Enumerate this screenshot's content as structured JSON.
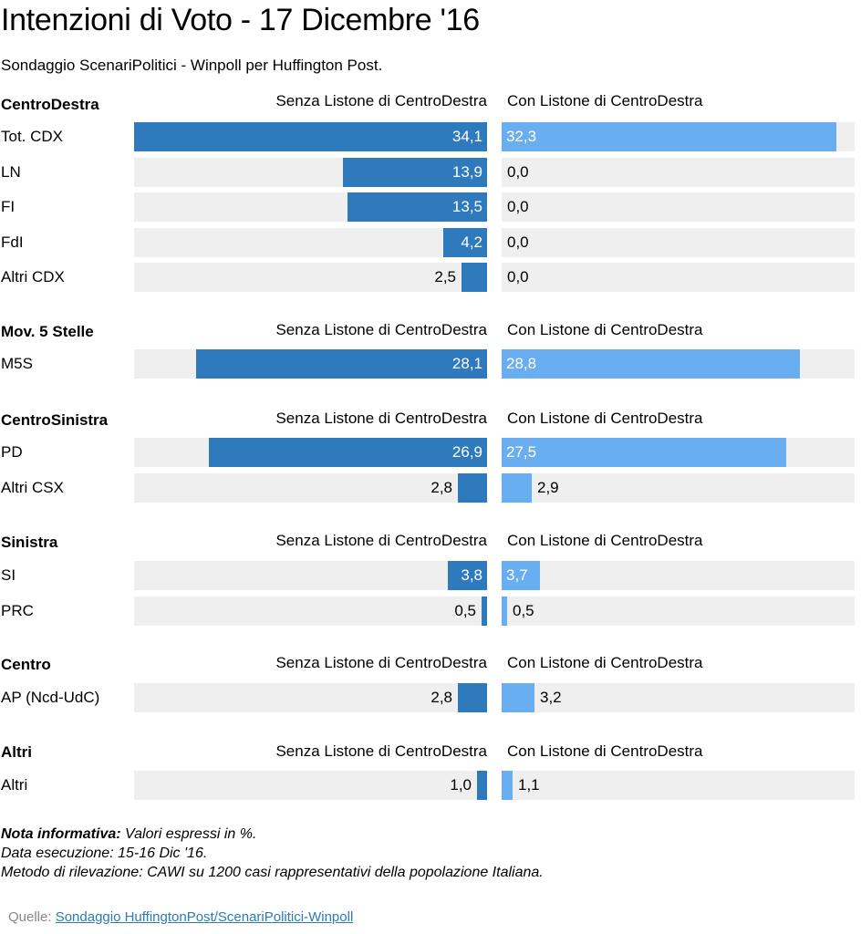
{
  "title": "Intenzioni di Voto - 17 Dicembre '16",
  "subtitle": "Sondaggio ScenariPolitici - Winpoll per Huffington Post.",
  "notes": {
    "label": "Nota informativa:",
    "line1": "Valori espressi in %.",
    "line2": "Data esecuzione: 15-16 Dic '16.",
    "line3": "Metodo di rilevazione: CAWI su 1200 casi rappresentativi della popolazione Italiana."
  },
  "source": {
    "prefix": "Quelle:",
    "link_text": "Sondaggio HuffingtonPost/ScenariPolitici-Winpoll"
  },
  "colors": {
    "left_bar": "#2e7abd",
    "right_bar": "#6aaef2",
    "track": "#efefef"
  },
  "chart_data": {
    "type": "bar",
    "orientation": "horizontal",
    "series": [
      {
        "name": "Senza Listone di CentroDestra"
      },
      {
        "name": "Con Listone di CentroDestra"
      }
    ],
    "xlim": [
      0,
      34.1
    ],
    "groups": [
      {
        "name": "CentroDestra",
        "rows": [
          {
            "label": "Tot. CDX",
            "left": 34.1,
            "left_text": "34,1",
            "right": 32.3,
            "right_text": "32,3"
          },
          {
            "label": "LN",
            "left": 13.9,
            "left_text": "13,9",
            "right": 0.0,
            "right_text": "0,0"
          },
          {
            "label": "FI",
            "left": 13.5,
            "left_text": "13,5",
            "right": 0.0,
            "right_text": "0,0"
          },
          {
            "label": "FdI",
            "left": 4.2,
            "left_text": "4,2",
            "right": 0.0,
            "right_text": "0,0"
          },
          {
            "label": "Altri CDX",
            "left": 2.5,
            "left_text": "2,5",
            "right": 0.0,
            "right_text": "0,0"
          }
        ]
      },
      {
        "name": "Mov. 5 Stelle",
        "rows": [
          {
            "label": "M5S",
            "left": 28.1,
            "left_text": "28,1",
            "right": 28.8,
            "right_text": "28,8"
          }
        ]
      },
      {
        "name": "CentroSinistra",
        "rows": [
          {
            "label": "PD",
            "left": 26.9,
            "left_text": "26,9",
            "right": 27.5,
            "right_text": "27,5"
          },
          {
            "label": "Altri CSX",
            "left": 2.8,
            "left_text": "2,8",
            "right": 2.9,
            "right_text": "2,9"
          }
        ]
      },
      {
        "name": "Sinistra",
        "rows": [
          {
            "label": "SI",
            "left": 3.8,
            "left_text": "3,8",
            "right": 3.7,
            "right_text": "3,7"
          },
          {
            "label": "PRC",
            "left": 0.5,
            "left_text": "0,5",
            "right": 0.5,
            "right_text": "0,5"
          }
        ]
      },
      {
        "name": "Centro",
        "rows": [
          {
            "label": "AP (Ncd-UdC)",
            "left": 2.8,
            "left_text": "2,8",
            "right": 3.2,
            "right_text": "3,2"
          }
        ]
      },
      {
        "name": "Altri",
        "rows": [
          {
            "label": "Altri",
            "left": 1.0,
            "left_text": "1,0",
            "right": 1.1,
            "right_text": "1,1"
          }
        ]
      }
    ]
  }
}
